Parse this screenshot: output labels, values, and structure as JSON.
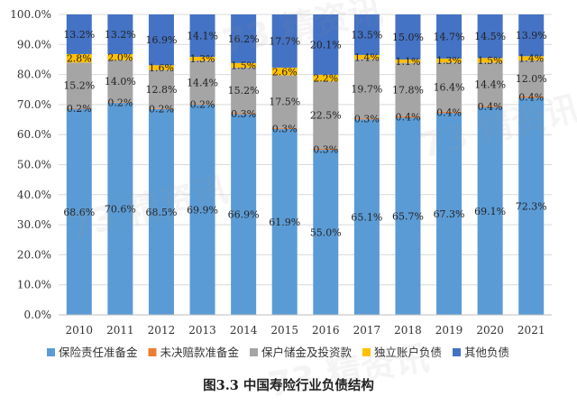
{
  "caption": "图3.3  中国寿险行业负债结构",
  "watermark": "73 精资讯",
  "chart_data": {
    "type": "bar",
    "stacked": true,
    "percent_stacked": true,
    "categories": [
      "2010",
      "2011",
      "2012",
      "2013",
      "2014",
      "2015",
      "2016",
      "2017",
      "2018",
      "2019",
      "2020",
      "2021"
    ],
    "ylim": [
      0,
      100
    ],
    "yticks": [
      "0.0%",
      "10.0%",
      "20.0%",
      "30.0%",
      "40.0%",
      "50.0%",
      "60.0%",
      "70.0%",
      "80.0%",
      "90.0%",
      "100.0%"
    ],
    "legend_position": "bottom",
    "series": [
      {
        "name": "保险责任准备金",
        "color": "#5B9BD5",
        "values": [
          68.6,
          70.6,
          68.5,
          69.9,
          66.9,
          61.9,
          55.0,
          65.1,
          65.7,
          67.3,
          69.1,
          72.3
        ],
        "labels": [
          "68.6%",
          "70.6%",
          "68.5%",
          "69.9%",
          "66.9%",
          "61.9%",
          "55.0%",
          "65.1%",
          "65.7%",
          "67.3%",
          "69.1%",
          "72.3%"
        ]
      },
      {
        "name": "未决赔款准备金",
        "color": "#ED7D31",
        "values": [
          0.2,
          0.2,
          0.2,
          0.2,
          0.3,
          0.3,
          0.3,
          0.3,
          0.4,
          0.4,
          0.4,
          0.4
        ],
        "labels": [
          "0.2%",
          "0.2%",
          "0.2%",
          "0.2%",
          "0.3%",
          "0.3%",
          "0.3%",
          "0.3%",
          "0.4%",
          "0.4%",
          "0.4%",
          "0.4%"
        ]
      },
      {
        "name": "保户储金及投资款",
        "color": "#A5A5A5",
        "values": [
          15.2,
          14.0,
          12.8,
          14.4,
          15.2,
          17.5,
          22.5,
          19.7,
          17.8,
          16.4,
          14.4,
          12.0
        ],
        "labels": [
          "15.2%",
          "14.0%",
          "12.8%",
          "14.4%",
          "15.2%",
          "17.5%",
          "22.5%",
          "19.7%",
          "17.8%",
          "16.4%",
          "14.4%",
          "12.0%"
        ]
      },
      {
        "name": "独立账户负债",
        "color": "#FFC000",
        "values": [
          2.8,
          2.0,
          1.6,
          1.3,
          1.5,
          2.6,
          2.2,
          1.4,
          1.1,
          1.3,
          1.5,
          1.4
        ],
        "labels": [
          "2.8%",
          "2.0%",
          "1.6%",
          "1.3%",
          "1.5%",
          "2.6%",
          "2.2%",
          "1.4%",
          "1.1%",
          "1.3%",
          "1.5%",
          "1.4%"
        ]
      },
      {
        "name": "其他负债",
        "color": "#4472C4",
        "values": [
          13.2,
          13.2,
          16.9,
          14.1,
          16.2,
          17.7,
          20.1,
          13.5,
          15.0,
          14.7,
          14.5,
          13.9
        ],
        "labels": [
          "13.2%",
          "13.2%",
          "16.9%",
          "14.1%",
          "16.2%",
          "17.7%",
          "20.1%",
          "13.5%",
          "15.0%",
          "14.7%",
          "14.5%",
          "13.9%"
        ]
      }
    ]
  }
}
